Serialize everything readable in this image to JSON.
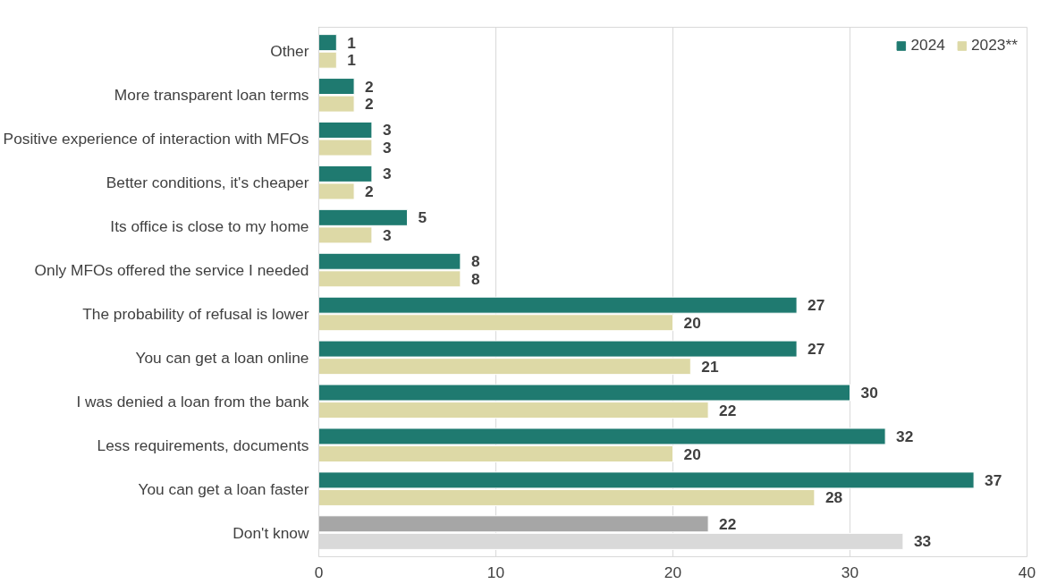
{
  "chart_data": {
    "type": "bar",
    "orientation": "horizontal",
    "categories": [
      "Other",
      "More transparent loan terms",
      "Positive experience of interaction with MFOs",
      "Better conditions, it's cheaper",
      "Its office is close to my home",
      "Only MFOs offered the service I needed",
      "The probability of refusal is lower",
      "You can get a loan online",
      "I was denied a loan from the bank",
      "Less requirements, documents",
      "You can get a loan faster",
      "Don't know"
    ],
    "series": [
      {
        "name": "2024",
        "color": "#1f7a70",
        "colors": [
          "#1f7a70",
          "#1f7a70",
          "#1f7a70",
          "#1f7a70",
          "#1f7a70",
          "#1f7a70",
          "#1f7a70",
          "#1f7a70",
          "#1f7a70",
          "#1f7a70",
          "#1f7a70",
          "#a6a6a6"
        ],
        "values": [
          1,
          2,
          3,
          3,
          5,
          8,
          27,
          27,
          30,
          32,
          37,
          22
        ]
      },
      {
        "name": "2023**",
        "color": "#ddd9a6",
        "colors": [
          "#ddd9a6",
          "#ddd9a6",
          "#ddd9a6",
          "#ddd9a6",
          "#ddd9a6",
          "#ddd9a6",
          "#ddd9a6",
          "#ddd9a6",
          "#ddd9a6",
          "#ddd9a6",
          "#ddd9a6",
          "#d9d9d9"
        ],
        "values": [
          1,
          2,
          3,
          2,
          3,
          8,
          20,
          21,
          22,
          20,
          28,
          33
        ]
      }
    ],
    "xlim": [
      0,
      40
    ],
    "xticks": [
      0,
      10,
      20,
      30,
      40
    ],
    "grid": "x",
    "legend": "top right",
    "data_labels": true
  }
}
